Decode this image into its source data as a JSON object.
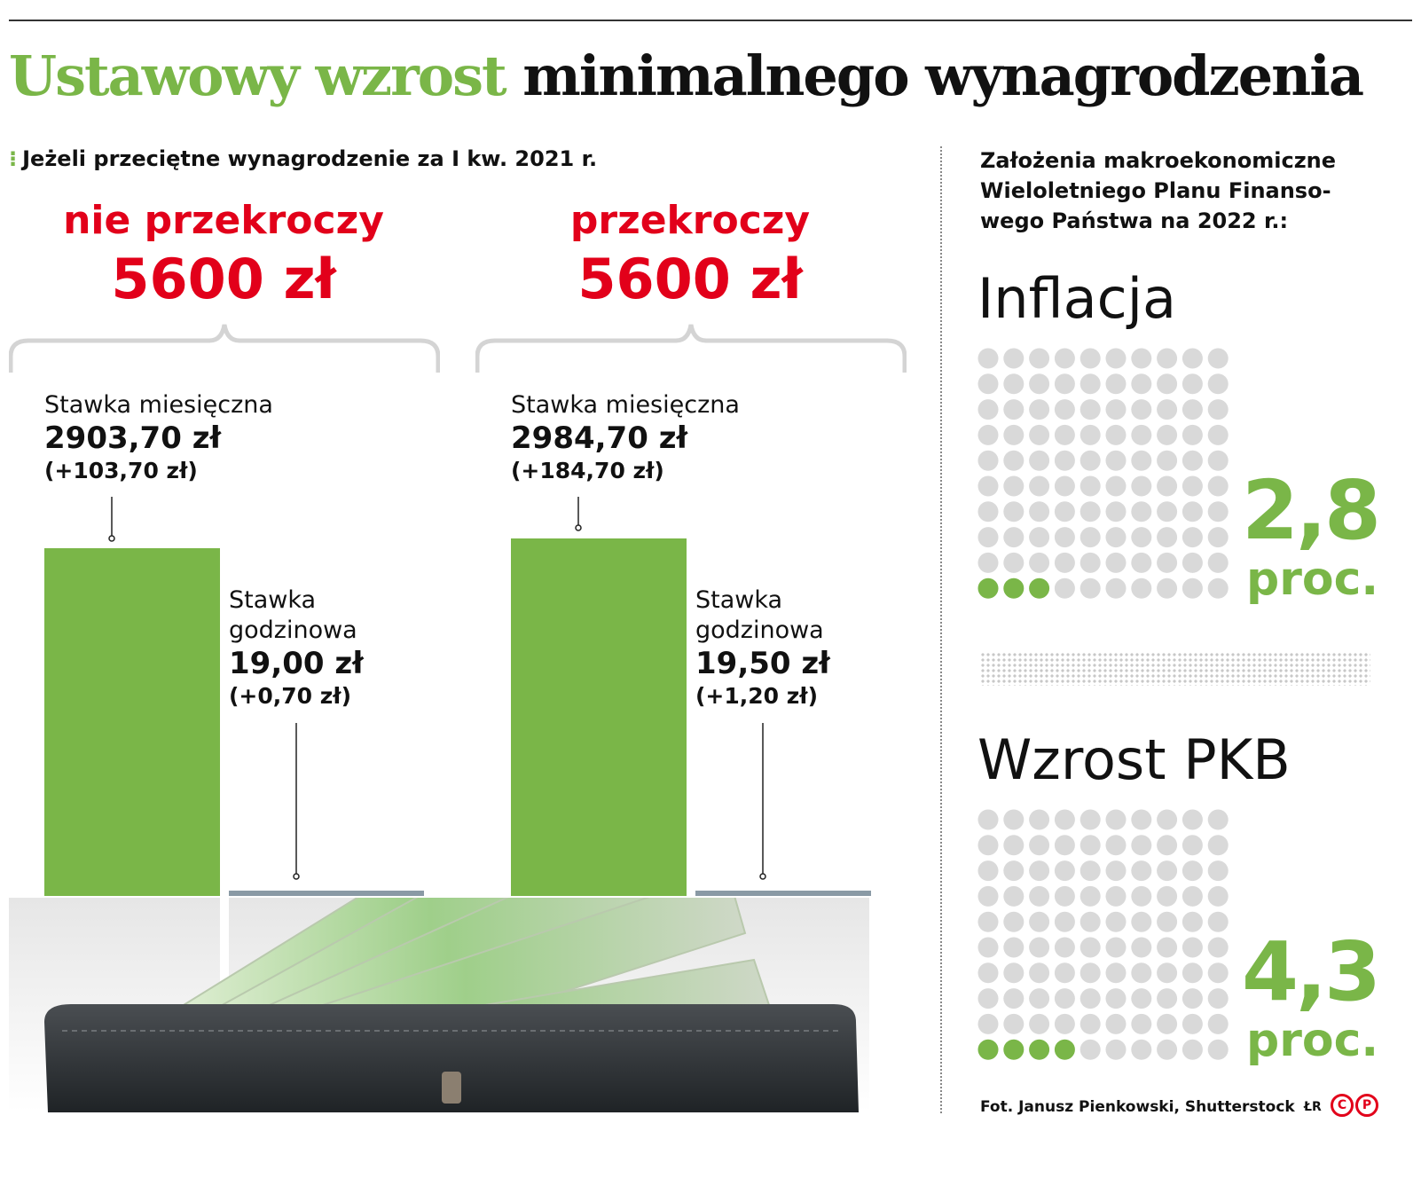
{
  "title_green": "Ustawowy wzrost",
  "title_black": "minimalnego wynagrodzenia",
  "subtitle": "Jeżeli przeciętne wynagrodzenie za I kw. 2021 r.",
  "scenarios": [
    {
      "condition": "nie przekroczy",
      "threshold": "5600 zł",
      "monthly_label": "Stawka miesięczna",
      "monthly_value": "2903,70 zł",
      "monthly_delta": "(+103,70 zł)",
      "hourly_label_1": "Stawka",
      "hourly_label_2": "godzinowa",
      "hourly_value": "19,00 zł",
      "hourly_delta": "(+0,70 zł)"
    },
    {
      "condition": "przekroczy",
      "threshold": "5600 zł",
      "monthly_label": "Stawka miesięczna",
      "monthly_value": "2984,70 zł",
      "monthly_delta": "(+184,70 zł)",
      "hourly_label_1": "Stawka",
      "hourly_label_2": "godzinowa",
      "hourly_value": "19,50 zł",
      "hourly_delta": "(+1,20 zł)"
    }
  ],
  "right_panel": {
    "heading": "Założenia makroekonomiczne Wieloletniego Planu Finansowego Państwa na 2022 r.:",
    "heading_lines": [
      "Założenia makroekonomiczne",
      "Wieloletniego Planu Finanso-",
      "wego Państwa na 2022 r.:"
    ],
    "inflation": {
      "label": "Inflacja",
      "value": "2,8",
      "unit": "proc."
    },
    "gdp": {
      "label": "Wzrost PKB",
      "value": "4,3",
      "unit": "proc."
    }
  },
  "credit": "Fot. Janusz Pienkowski, Shutterstock",
  "logo_text": "ŁR",
  "logo_letters": [
    "C",
    "P"
  ],
  "colors": {
    "green": "#7ab648",
    "red": "#e2001a",
    "dot_grey": "#d9d9d9"
  },
  "chart_data": {
    "type": "bar",
    "categories": [
      "nie przekroczy 5600 zł",
      "przekroczy 5600 zł"
    ],
    "series": [
      {
        "name": "Stawka miesięczna",
        "values": [
          2903.7,
          2984.7
        ]
      },
      {
        "name": "Stawka godzinowa",
        "values": [
          19.0,
          19.5
        ]
      }
    ],
    "monthly_increase": [
      103.7,
      184.7
    ],
    "hourly_increase": [
      0.7,
      1.2
    ],
    "dot_charts": [
      {
        "label": "Inflacja",
        "value": 2.8,
        "unit": "proc.",
        "dots_total": 100,
        "dots_filled": 3
      },
      {
        "label": "Wzrost PKB",
        "value": 4.3,
        "unit": "proc.",
        "dots_total": 100,
        "dots_filled": 4
      }
    ]
  }
}
